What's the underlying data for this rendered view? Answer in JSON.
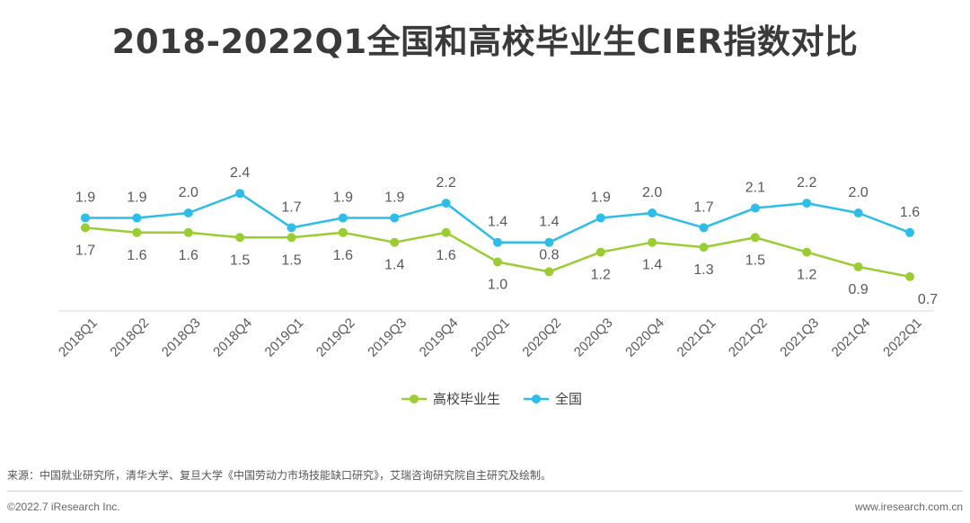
{
  "title": "2018-2022Q1全国和高校毕业生CIER指数对比",
  "chart_data": {
    "type": "line",
    "title": "2018-2022Q1全国和高校毕业生CIER指数对比",
    "categories": [
      "2018Q1",
      "2018Q2",
      "2018Q3",
      "2018Q4",
      "2019Q1",
      "2019Q2",
      "2019Q3",
      "2019Q4",
      "2020Q1",
      "2020Q2",
      "2020Q3",
      "2020Q4",
      "2021Q1",
      "2021Q2",
      "2021Q3",
      "2021Q4",
      "2022Q1"
    ],
    "series": [
      {
        "name": "高校毕业生",
        "color": "#9acd32",
        "values": [
          1.7,
          1.6,
          1.6,
          1.5,
          1.5,
          1.6,
          1.4,
          1.6,
          1.0,
          0.8,
          1.2,
          1.4,
          1.3,
          1.5,
          1.2,
          0.9,
          0.7
        ],
        "labels": [
          "1.7",
          "1.6",
          "1.6",
          "1.5",
          "1.5",
          "1.6",
          "1.4",
          "1.6",
          "1.0",
          "0.8",
          "1.2",
          "1.4",
          "1.3",
          "1.5",
          "1.2",
          "0.9",
          "0.7"
        ]
      },
      {
        "name": "全国",
        "color": "#2cbde8",
        "values": [
          1.9,
          1.9,
          2.0,
          2.4,
          1.7,
          1.9,
          1.9,
          2.2,
          1.4,
          1.4,
          1.9,
          2.0,
          1.7,
          2.1,
          2.2,
          2.0,
          1.6
        ],
        "labels": [
          "1.9",
          "1.9",
          "2.0",
          "2.4",
          "1.7",
          "1.9",
          "1.9",
          "2.2",
          "1.4",
          "1.4",
          "1.9",
          "2.0",
          "1.7",
          "2.1",
          "2.2",
          "2.0",
          "1.6"
        ]
      }
    ],
    "legend": "bottom-center",
    "grid": false,
    "xlabel": "",
    "ylabel": ""
  },
  "footer": {
    "source": "来源：中国就业研究所，清华大学、复旦大学《中国劳动力市场技能缺口研究》，艾瑞咨询研究院自主研究及绘制。",
    "copyright": "©2022.7 iResearch Inc.",
    "website": "www.iresearch.com.cn"
  }
}
